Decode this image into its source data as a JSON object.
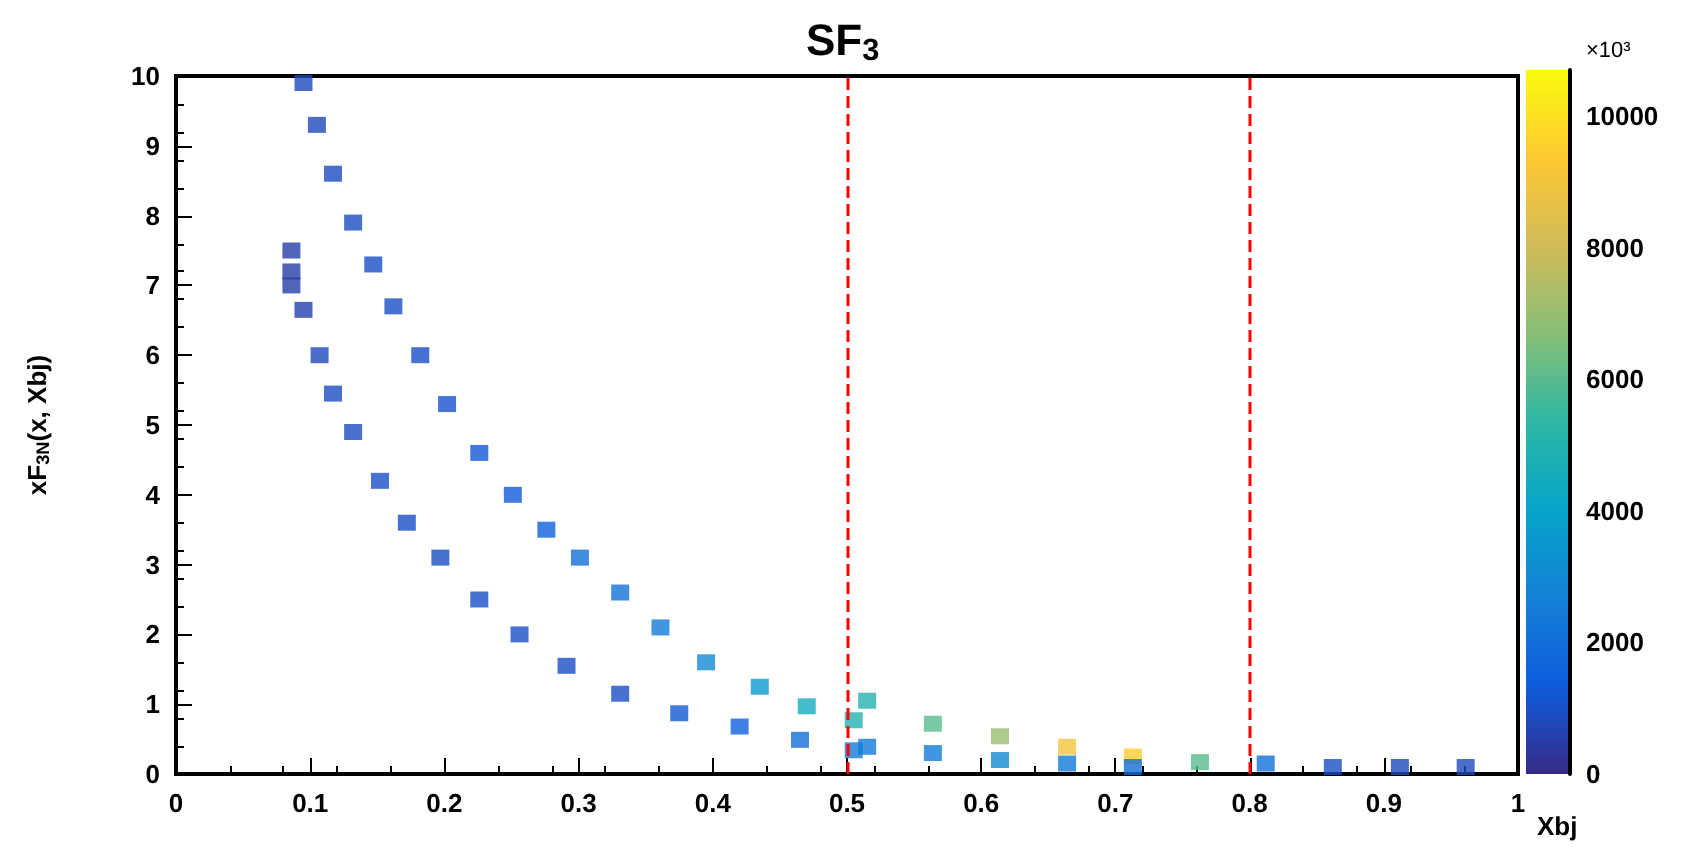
{
  "chart_data": {
    "type": "scatter",
    "title": "SF$_{3}$",
    "xlabel": "Xbj",
    "ylabel": "xF$_{3N}$(x, Xbj)",
    "clabel": "×10³",
    "x": [
      0.095,
      0.105,
      0.117,
      0.132,
      0.147,
      0.162,
      0.182,
      0.202,
      0.226,
      0.251,
      0.276,
      0.301,
      0.331,
      0.361,
      0.395,
      0.435,
      0.47,
      0.505,
      0.515,
      0.564,
      0.614,
      0.664,
      0.713,
      0.763,
      0.812,
      0.862,
      0.912,
      0.961,
      0.086,
      0.086,
      0.086,
      0.095,
      0.107,
      0.117,
      0.132,
      0.152,
      0.172,
      0.197,
      0.226,
      0.256,
      0.291,
      0.331,
      0.375,
      0.42,
      0.465,
      0.505,
      0.515,
      0.564,
      0.614,
      0.664,
      0.713
    ],
    "values": [
      9.9,
      9.3,
      8.6,
      7.9,
      7.3,
      6.7,
      6.0,
      5.3,
      4.6,
      4.0,
      3.5,
      3.1,
      2.6,
      2.1,
      1.6,
      1.25,
      0.97,
      0.77,
      1.05,
      0.72,
      0.54,
      0.39,
      0.25,
      0.17,
      0.15,
      0.1,
      0.1,
      0.1,
      7.5,
      7.2,
      7.0,
      6.65,
      6.0,
      5.45,
      4.9,
      4.2,
      3.6,
      3.1,
      2.5,
      2.0,
      1.55,
      1.15,
      0.87,
      0.68,
      0.49,
      0.34,
      0.39,
      0.3,
      0.2,
      0.15,
      0.1
    ],
    "cvalues": [
      800,
      800,
      900,
      900,
      1000,
      1000,
      1000,
      1100,
      1200,
      1300,
      1500,
      2000,
      2200,
      2500,
      3000,
      3500,
      4500,
      5000,
      5000,
      6000,
      7000,
      9000,
      9500,
      6000,
      2000,
      1000,
      800,
      800,
      500,
      500,
      500,
      600,
      800,
      900,
      900,
      1000,
      1000,
      1000,
      1000,
      1000,
      1000,
      1000,
      1200,
      1500,
      2000,
      2500,
      2500,
      2500,
      3000,
      2500,
      2000
    ],
    "xlim": [
      0,
      1
    ],
    "xticks": [
      0,
      0.1,
      0.2,
      0.3,
      0.4,
      0.5,
      0.6,
      0.7,
      0.8,
      0.9,
      1
    ],
    "ylim": [
      0,
      10
    ],
    "yticks": [
      0,
      1,
      2,
      3,
      4,
      5,
      6,
      7,
      8,
      9,
      10
    ],
    "clim": [
      0,
      10700
    ],
    "cticks": [
      0,
      2000,
      4000,
      6000,
      8000,
      10000
    ],
    "marker": "square",
    "ref_lines": [
      {
        "axis": "x",
        "value": 0.5,
        "color": "#ff0000",
        "line_style": "dashed"
      },
      {
        "axis": "x",
        "value": 0.8,
        "color": "#ff0000",
        "line_style": "dashed"
      }
    ]
  }
}
